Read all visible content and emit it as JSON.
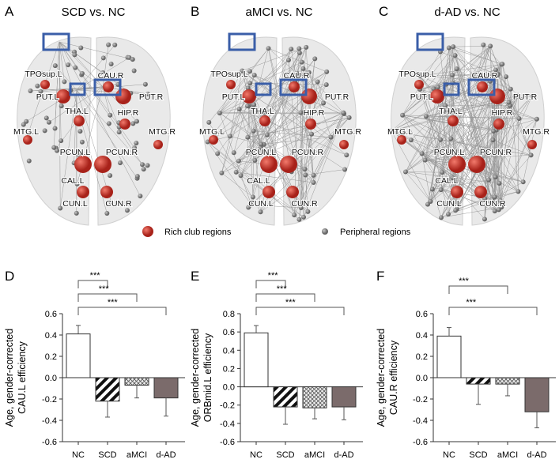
{
  "brain_panels": [
    {
      "letter": "A",
      "title": "SCD vs. NC"
    },
    {
      "letter": "B",
      "title": "aMCI vs. NC"
    },
    {
      "letter": "C",
      "title": "d-AD vs. NC"
    }
  ],
  "region_labels": [
    "TPOsup.L",
    "CAU.R",
    "PUT.L",
    "THA.L",
    "PUT.R",
    "HIP.R",
    "MTG.L",
    "MTG.R",
    "PCUN.L",
    "PCUN.R",
    "CAL.L",
    "CUN.L",
    "CUN.R"
  ],
  "legend": {
    "rich": "Rich club regions",
    "peripheral": "Peripheral regions"
  },
  "colors": {
    "rich": "#c8352b",
    "peripheral": "#8a8a8a",
    "highlight_box": "#3a5ea8",
    "nc": "#ffffff",
    "dAD": "#7b6b6b"
  },
  "chart_data": [
    {
      "type": "bar",
      "letter": "D",
      "ylabel": [
        "Age, gender-corrected",
        "CAU.L efficiency"
      ],
      "categories": [
        "NC",
        "SCD",
        "aMCI",
        "d-AD"
      ],
      "values": [
        0.41,
        -0.22,
        -0.07,
        -0.19
      ],
      "errors": [
        0.08,
        0.15,
        0.12,
        0.17
      ],
      "ylim": [
        -0.6,
        0.6
      ],
      "yticks": [
        "-0.6",
        "-0.4",
        "-0.2",
        "0.0",
        "0.2",
        "0.4",
        "0.6"
      ],
      "significance": [
        {
          "from": "NC",
          "to": "SCD",
          "label": "***"
        },
        {
          "from": "NC",
          "to": "aMCI",
          "label": "***"
        },
        {
          "from": "NC",
          "to": "d-AD",
          "label": "***"
        }
      ]
    },
    {
      "type": "bar",
      "letter": "E",
      "ylabel": [
        "Age, gender-corrected",
        "ORBmid.L efficiency"
      ],
      "categories": [
        "NC",
        "SCD",
        "aMCI",
        "d-AD"
      ],
      "values": [
        0.59,
        -0.22,
        -0.23,
        -0.22
      ],
      "errors": [
        0.08,
        0.19,
        0.12,
        0.14
      ],
      "ylim": [
        -0.6,
        0.8
      ],
      "yticks": [
        "-0.6",
        "-0.4",
        "-0.2",
        "0.0",
        "0.2",
        "0.4",
        "0.6",
        "0.8"
      ],
      "significance": [
        {
          "from": "NC",
          "to": "SCD",
          "label": "***"
        },
        {
          "from": "NC",
          "to": "aMCI",
          "label": "***"
        },
        {
          "from": "NC",
          "to": "d-AD",
          "label": "***"
        }
      ]
    },
    {
      "type": "bar",
      "letter": "F",
      "ylabel": [
        "Age, gender-corrected",
        "CAU.R efficiency"
      ],
      "categories": [
        "NC",
        "SCD",
        "aMCI",
        "d-AD"
      ],
      "values": [
        0.39,
        -0.06,
        -0.06,
        -0.32
      ],
      "errors": [
        0.08,
        0.19,
        0.11,
        0.15
      ],
      "ylim": [
        -0.6,
        0.6
      ],
      "yticks": [
        "-0.6",
        "-0.4",
        "-0.2",
        "0.0",
        "0.2",
        "0.4",
        "0.6"
      ],
      "significance": [
        {
          "from": "NC",
          "to": "aMCI",
          "label": "***"
        },
        {
          "from": "NC",
          "to": "d-AD",
          "label": "***"
        }
      ]
    }
  ]
}
